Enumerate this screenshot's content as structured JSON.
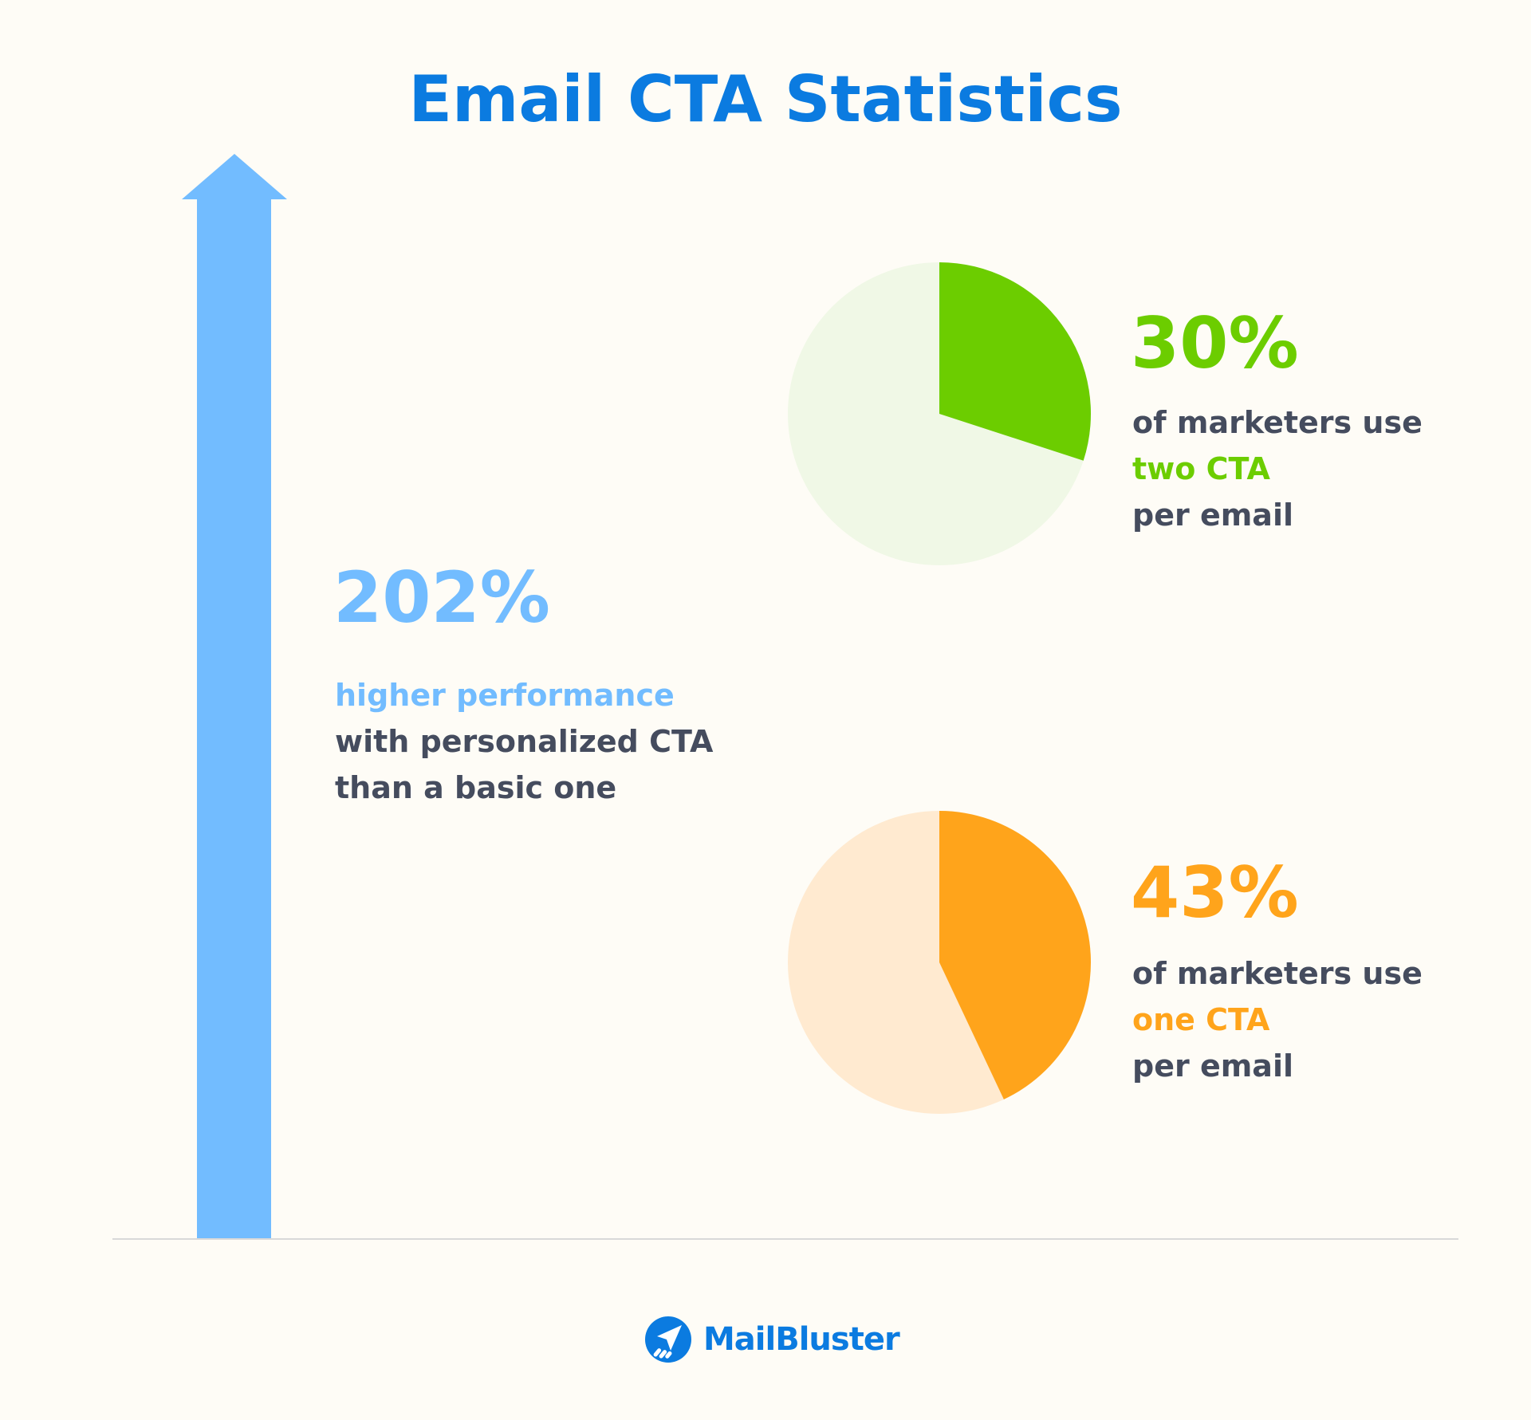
{
  "title": "Email CTA Statistics",
  "colors": {
    "title": "#0b7be0",
    "arrow": "#72bcff",
    "green": "#6ccd00",
    "green_light": "#f0f8e6",
    "orange": "#ffa41b",
    "orange_light": "#ffead0",
    "text": "#454c5e",
    "background": "#fefcf6"
  },
  "stats": {
    "personalized": {
      "value": "202%",
      "highlight": "higher performance",
      "line2": "with personalized CTA",
      "line3": "than a basic one",
      "icon": "up-arrow-icon"
    },
    "two_cta": {
      "value": "30%",
      "percent": 30,
      "line1": "of marketers use",
      "highlight": "two CTA",
      "line3": "per email"
    },
    "one_cta": {
      "value": "43%",
      "percent": 43,
      "line1": "of marketers use",
      "highlight": "one CTA",
      "line3": "per email"
    }
  },
  "brand": {
    "name": "MailBluster",
    "icon": "paper-plane-logo-icon"
  }
}
